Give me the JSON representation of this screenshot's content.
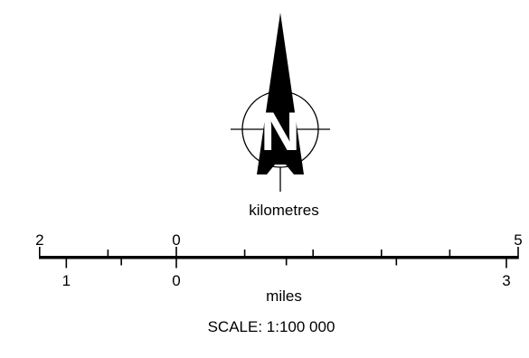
{
  "north_arrow": {
    "letter": "N",
    "icon": "north-arrow-icon"
  },
  "scale_bar": {
    "km_label": "kilometres",
    "km_ticks": [
      {
        "label": "2",
        "value": -2
      },
      {
        "label": "0",
        "value": 0
      },
      {
        "label": "5",
        "value": 5
      }
    ],
    "km_minor_ticks": [
      -1,
      1,
      2,
      3,
      4
    ],
    "miles_label": "miles",
    "mile_ticks": [
      {
        "label": "1",
        "value": -1
      },
      {
        "label": "0",
        "value": 0
      },
      {
        "label": "3",
        "value": 3
      }
    ],
    "mile_minor_ticks": [
      -0.5,
      1,
      2
    ],
    "scale_text": "SCALE:  1:100 000"
  }
}
